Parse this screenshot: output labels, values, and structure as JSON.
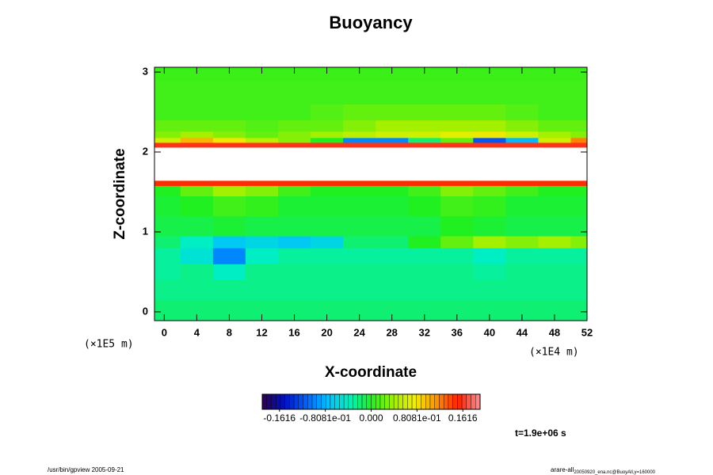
{
  "chart_data": {
    "type": "heatmap",
    "title": "Buoyancy",
    "x_label": "X-coordinate",
    "y_label": "Z-coordinate",
    "x_unit": "(×1E4 m)",
    "y_unit": "(×1E5 m)",
    "time_label": "t=1.9e+06 s",
    "footer_left": "/usr/bin/gpview 2005-09-21",
    "footer_right_main": "arare-all",
    "footer_right_sub": "20050920_ena.nc@BuoyAll,y=160000",
    "xlim": [
      -1.2,
      52
    ],
    "ylim": [
      -0.11,
      3.06
    ],
    "xticks": [
      0,
      4,
      8,
      12,
      16,
      20,
      24,
      28,
      32,
      36,
      40,
      44,
      48,
      52
    ],
    "yticks": [
      0,
      1,
      2,
      3
    ],
    "x_bins": [
      -1.2,
      2,
      6,
      10,
      14,
      18,
      22,
      26,
      30,
      34,
      38,
      42,
      46,
      50,
      52
    ],
    "y_bins": [
      -0.11,
      0.15,
      0.4,
      0.6,
      0.8,
      0.95,
      1.2,
      1.45,
      1.58,
      1.64,
      2.06,
      2.12,
      2.18,
      2.26,
      2.4,
      2.6,
      2.9,
      3.06
    ],
    "values": [
      [
        -0.02,
        -0.02,
        -0.02,
        -0.02,
        -0.02,
        -0.02,
        -0.02,
        -0.02,
        -0.02,
        -0.02,
        -0.02,
        -0.02,
        -0.02,
        -0.02
      ],
      [
        -0.025,
        -0.025,
        -0.025,
        -0.025,
        -0.025,
        -0.025,
        -0.025,
        -0.025,
        -0.025,
        -0.025,
        -0.025,
        -0.025,
        -0.025,
        -0.025
      ],
      [
        -0.03,
        -0.025,
        -0.04,
        -0.025,
        -0.025,
        -0.025,
        -0.025,
        -0.025,
        -0.025,
        -0.025,
        -0.03,
        -0.025,
        -0.025,
        -0.025
      ],
      [
        -0.03,
        -0.05,
        -0.1,
        -0.04,
        -0.03,
        -0.03,
        -0.03,
        -0.03,
        -0.03,
        -0.03,
        -0.04,
        -0.03,
        -0.03,
        -0.03
      ],
      [
        -0.02,
        -0.04,
        -0.07,
        -0.06,
        -0.07,
        -0.06,
        -0.02,
        -0.02,
        0.0,
        0.02,
        0.04,
        0.03,
        0.04,
        0.03
      ],
      [
        -0.01,
        -0.01,
        -0.005,
        -0.01,
        -0.01,
        -0.01,
        -0.01,
        -0.01,
        -0.01,
        0.0,
        -0.005,
        -0.01,
        -0.01,
        -0.01
      ],
      [
        -0.005,
        0.0,
        0.01,
        0.005,
        -0.005,
        -0.005,
        -0.005,
        -0.005,
        0.0,
        0.01,
        0.005,
        -0.005,
        -0.005,
        -0.005
      ],
      [
        0.0,
        0.02,
        0.04,
        0.03,
        0.01,
        0.0,
        0.0,
        0.0,
        0.01,
        0.03,
        0.02,
        0.01,
        0.0,
        0.0
      ],
      [
        0.15,
        0.15,
        0.15,
        0.15,
        0.15,
        0.15,
        0.15,
        0.15,
        0.15,
        0.15,
        0.15,
        0.15,
        0.15,
        0.15
      ],
      [
        null,
        null,
        null,
        null,
        null,
        null,
        null,
        null,
        null,
        null,
        null,
        null,
        null,
        null
      ],
      [
        0.16,
        0.16,
        0.16,
        0.16,
        0.16,
        0.16,
        0.16,
        0.16,
        0.16,
        0.16,
        0.16,
        0.16,
        0.16,
        0.16
      ],
      [
        0.06,
        0.1,
        0.08,
        0.05,
        0.03,
        0.0,
        -0.1,
        -0.1,
        -0.02,
        0.02,
        -0.12,
        -0.08,
        0.06,
        0.12
      ],
      [
        0.03,
        0.04,
        0.03,
        0.02,
        0.03,
        0.04,
        0.05,
        0.06,
        0.06,
        0.07,
        0.08,
        0.06,
        0.04,
        0.03
      ],
      [
        0.02,
        0.02,
        0.02,
        0.015,
        0.02,
        0.02,
        0.03,
        0.04,
        0.04,
        0.04,
        0.04,
        0.03,
        0.02,
        0.02
      ],
      [
        0.01,
        0.01,
        0.01,
        0.01,
        0.01,
        0.015,
        0.02,
        0.02,
        0.02,
        0.02,
        0.02,
        0.015,
        0.01,
        0.01
      ],
      [
        0.01,
        0.01,
        0.01,
        0.01,
        0.01,
        0.01,
        0.01,
        0.01,
        0.01,
        0.01,
        0.01,
        0.01,
        0.01,
        0.01
      ],
      [
        0.008,
        0.008,
        0.008,
        0.008,
        0.008,
        0.008,
        0.008,
        0.008,
        0.008,
        0.008,
        0.008,
        0.008,
        0.008,
        0.008
      ]
    ],
    "clim": [
      -0.192,
      0.192
    ],
    "colormap": [
      "#2d004f",
      "#0010c0",
      "#0060ff",
      "#00c0ff",
      "#00f0c0",
      "#20f020",
      "#a0f000",
      "#f0f000",
      "#ff9000",
      "#ff2000",
      "#ff9090"
    ],
    "cticks": [
      -0.1616,
      {
        "value": -0.08081,
        "label": "-0.8081e-01"
      },
      {
        "value": 0,
        "label": "0.000"
      },
      {
        "value": 0.08081,
        "label": "0.8081e-01"
      },
      0.1616
    ]
  }
}
